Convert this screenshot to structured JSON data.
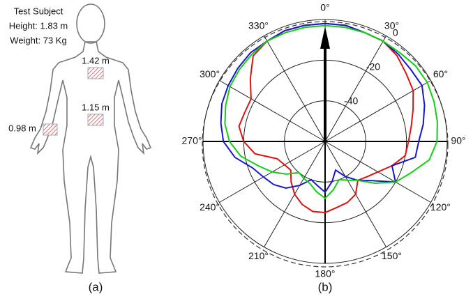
{
  "body_diagram": {
    "title": "Test Subject",
    "height": "Height: 1.83 m",
    "weight": "Weight: 73 Kg",
    "positions": [
      "1.42 m",
      "1.15 m",
      "0.98 m"
    ],
    "caption": "(a)"
  },
  "chart_data": {
    "type": "polar",
    "caption": "(b)",
    "direction": "clockwise",
    "zero": "top",
    "x": [
      0,
      10,
      20,
      30,
      40,
      50,
      60,
      70,
      80,
      90,
      100,
      110,
      120,
      130,
      140,
      150,
      160,
      170,
      180,
      190,
      200,
      210,
      220,
      230,
      240,
      250,
      260,
      270,
      280,
      290,
      300,
      310,
      320,
      330,
      340,
      350
    ],
    "rlim": [
      -60,
      0
    ],
    "rticks": [
      -40,
      -20,
      0
    ],
    "xticks": [
      {
        "value": 0,
        "label": "0°"
      },
      {
        "value": 30,
        "label": "30°"
      },
      {
        "value": 60,
        "label": "60°"
      },
      {
        "value": 90,
        "label": "90°"
      },
      {
        "value": 120,
        "label": "120°"
      },
      {
        "value": 150,
        "label": "150°"
      },
      {
        "value": 180,
        "label": "180°"
      },
      {
        "value": 210,
        "label": "210°"
      },
      {
        "value": 240,
        "label": "240°"
      },
      {
        "value": 270,
        "label": "270°"
      },
      {
        "value": 300,
        "label": "300°"
      },
      {
        "value": 330,
        "label": "330°"
      }
    ],
    "series": [
      {
        "color": "#e01010",
        "values": [
          -2,
          -2,
          -3,
          -3,
          -5,
          -8,
          -10,
          -14,
          -17,
          -19,
          -20,
          -25,
          -30,
          -33,
          -35,
          -30,
          -28,
          -27,
          -25,
          -25,
          -27,
          -30,
          -34,
          -38,
          -37,
          -35,
          -25,
          -20,
          -17,
          -18,
          -18,
          -12,
          -5,
          -3,
          -2,
          -2
        ]
      },
      {
        "color": "#1515d0",
        "values": [
          -2,
          -2,
          -3,
          -3,
          -4,
          -5,
          -5,
          -8,
          -11,
          -14,
          -15,
          -25,
          -20,
          -30,
          -35,
          -40,
          -45,
          -40,
          -35,
          -38,
          -40,
          -35,
          -30,
          -27,
          -25,
          -22,
          -15,
          -10,
          -8,
          -6,
          -5,
          -4,
          -3,
          -3,
          -2,
          -2
        ]
      },
      {
        "color": "#10d010",
        "values": [
          -3,
          -3,
          -3,
          -3,
          -3,
          -2,
          -2,
          -3,
          -4,
          -5,
          -8,
          -15,
          -20,
          -28,
          -35,
          -38,
          -40,
          -36,
          -32,
          -35,
          -38,
          -39,
          -40,
          -35,
          -30,
          -25,
          -18,
          -13,
          -10,
          -8,
          -6,
          -5,
          -4,
          -3,
          -3,
          -3
        ]
      }
    ]
  }
}
